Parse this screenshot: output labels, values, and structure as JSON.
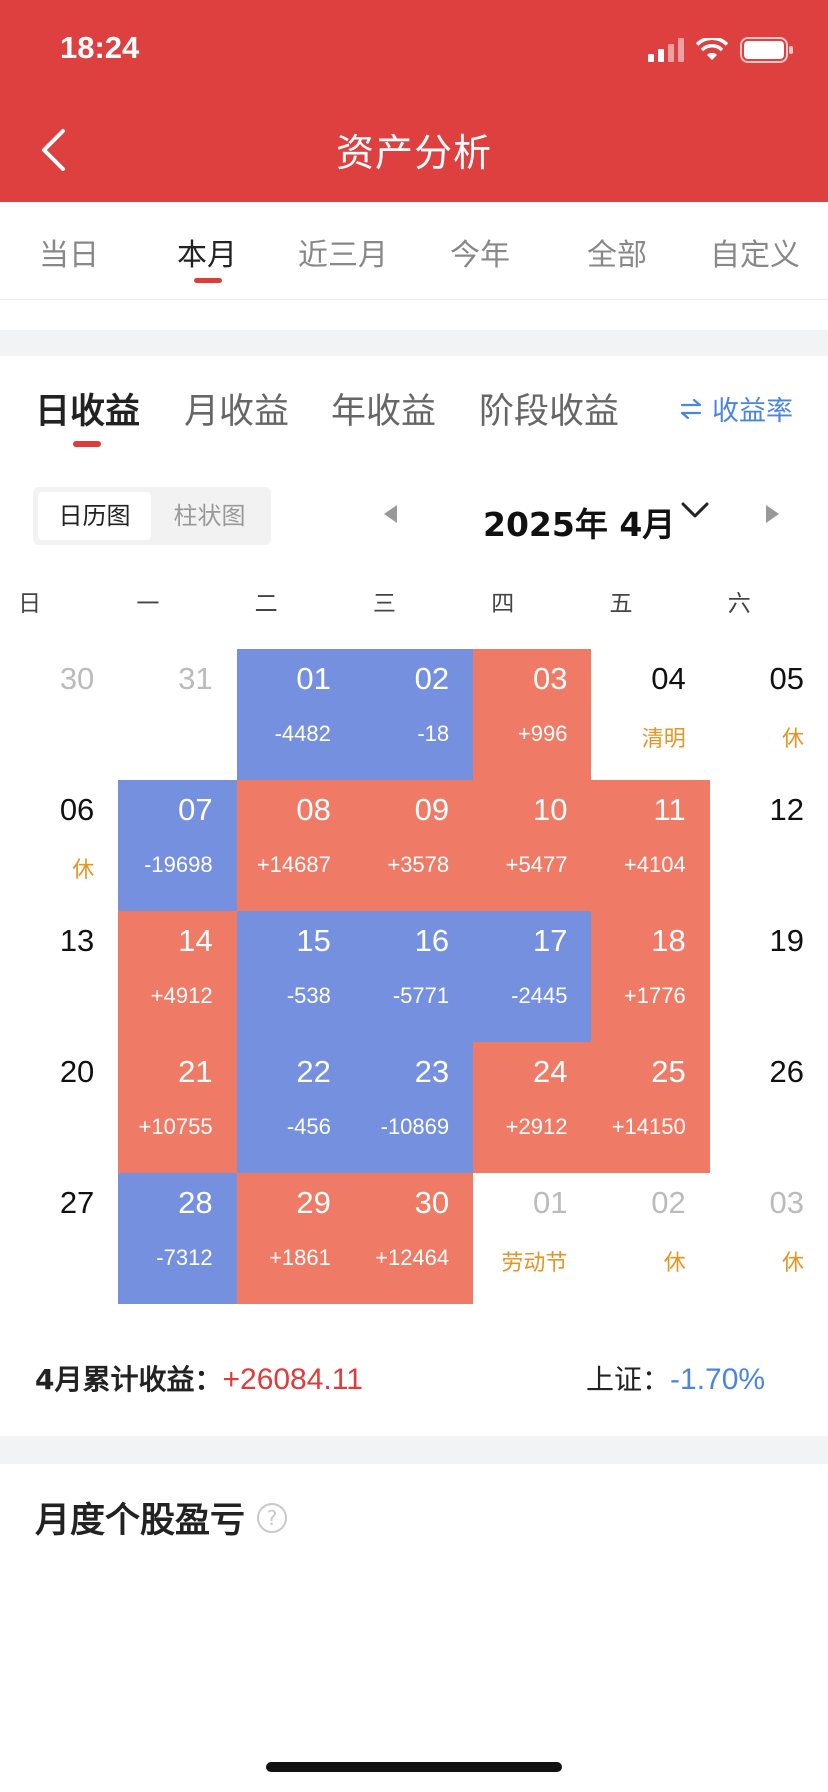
{
  "status_bar": {
    "time": "18:24"
  },
  "header": {
    "title": "资产分析"
  },
  "period_tabs": [
    {
      "label": "当日",
      "active": false
    },
    {
      "label": "本月",
      "active": true
    },
    {
      "label": "近三月",
      "active": false
    },
    {
      "label": "今年",
      "active": false
    },
    {
      "label": "全部",
      "active": false
    },
    {
      "label": "自定义",
      "active": false
    }
  ],
  "income_tabs": [
    {
      "label": "日收益",
      "active": true
    },
    {
      "label": "月收益",
      "active": false
    },
    {
      "label": "年收益",
      "active": false
    },
    {
      "label": "阶段收益",
      "active": false
    }
  ],
  "rate_link": {
    "label": "收益率",
    "icon": "swap-icon"
  },
  "view_toggle": {
    "calendar": "日历图",
    "bar": "柱状图",
    "selected": "日历图"
  },
  "month_nav": {
    "label": "2025年 4月"
  },
  "weekdays": [
    "日",
    "一",
    "二",
    "三",
    "四",
    "五",
    "六"
  ],
  "calendar": {
    "weeks": [
      [
        {
          "day": "30",
          "value": "",
          "state": "other"
        },
        {
          "day": "31",
          "value": "",
          "state": "other"
        },
        {
          "day": "01",
          "value": "-4482",
          "state": "neg"
        },
        {
          "day": "02",
          "value": "-18",
          "state": "neg"
        },
        {
          "day": "03",
          "value": "+996",
          "state": "pos"
        },
        {
          "day": "04",
          "value": "清明",
          "state": "holiday"
        },
        {
          "day": "05",
          "value": "休",
          "state": "holiday"
        }
      ],
      [
        {
          "day": "06",
          "value": "休",
          "state": "holiday"
        },
        {
          "day": "07",
          "value": "-19698",
          "state": "neg"
        },
        {
          "day": "08",
          "value": "+14687",
          "state": "pos"
        },
        {
          "day": "09",
          "value": "+3578",
          "state": "pos"
        },
        {
          "day": "10",
          "value": "+5477",
          "state": "pos"
        },
        {
          "day": "11",
          "value": "+4104",
          "state": "pos"
        },
        {
          "day": "12",
          "value": "",
          "state": "normal"
        }
      ],
      [
        {
          "day": "13",
          "value": "",
          "state": "normal"
        },
        {
          "day": "14",
          "value": "+4912",
          "state": "pos"
        },
        {
          "day": "15",
          "value": "-538",
          "state": "neg"
        },
        {
          "day": "16",
          "value": "-5771",
          "state": "neg"
        },
        {
          "day": "17",
          "value": "-2445",
          "state": "neg"
        },
        {
          "day": "18",
          "value": "+1776",
          "state": "pos"
        },
        {
          "day": "19",
          "value": "",
          "state": "normal"
        }
      ],
      [
        {
          "day": "20",
          "value": "",
          "state": "normal"
        },
        {
          "day": "21",
          "value": "+10755",
          "state": "pos"
        },
        {
          "day": "22",
          "value": "-456",
          "state": "neg"
        },
        {
          "day": "23",
          "value": "-10869",
          "state": "neg"
        },
        {
          "day": "24",
          "value": "+2912",
          "state": "pos"
        },
        {
          "day": "25",
          "value": "+14150",
          "state": "pos"
        },
        {
          "day": "26",
          "value": "",
          "state": "normal"
        }
      ],
      [
        {
          "day": "27",
          "value": "",
          "state": "normal"
        },
        {
          "day": "28",
          "value": "-7312",
          "state": "neg"
        },
        {
          "day": "29",
          "value": "+1861",
          "state": "pos"
        },
        {
          "day": "30",
          "value": "+12464",
          "state": "pos"
        },
        {
          "day": "01",
          "value": "劳动节",
          "state": "other-holiday"
        },
        {
          "day": "02",
          "value": "休",
          "state": "other-holiday"
        },
        {
          "day": "03",
          "value": "休",
          "state": "other-holiday"
        }
      ]
    ]
  },
  "summary": {
    "monthly_label": "4月累计收益：",
    "monthly_value": "+26084.11",
    "index_label": "上证：",
    "index_value": "-1.70%"
  },
  "section": {
    "title": "月度个股盈亏",
    "help": "?"
  },
  "colors": {
    "brand": "#de4040",
    "positive": "#ef7b66",
    "negative": "#7690e0",
    "holiday": "#e49524",
    "link": "#4a86e0"
  }
}
